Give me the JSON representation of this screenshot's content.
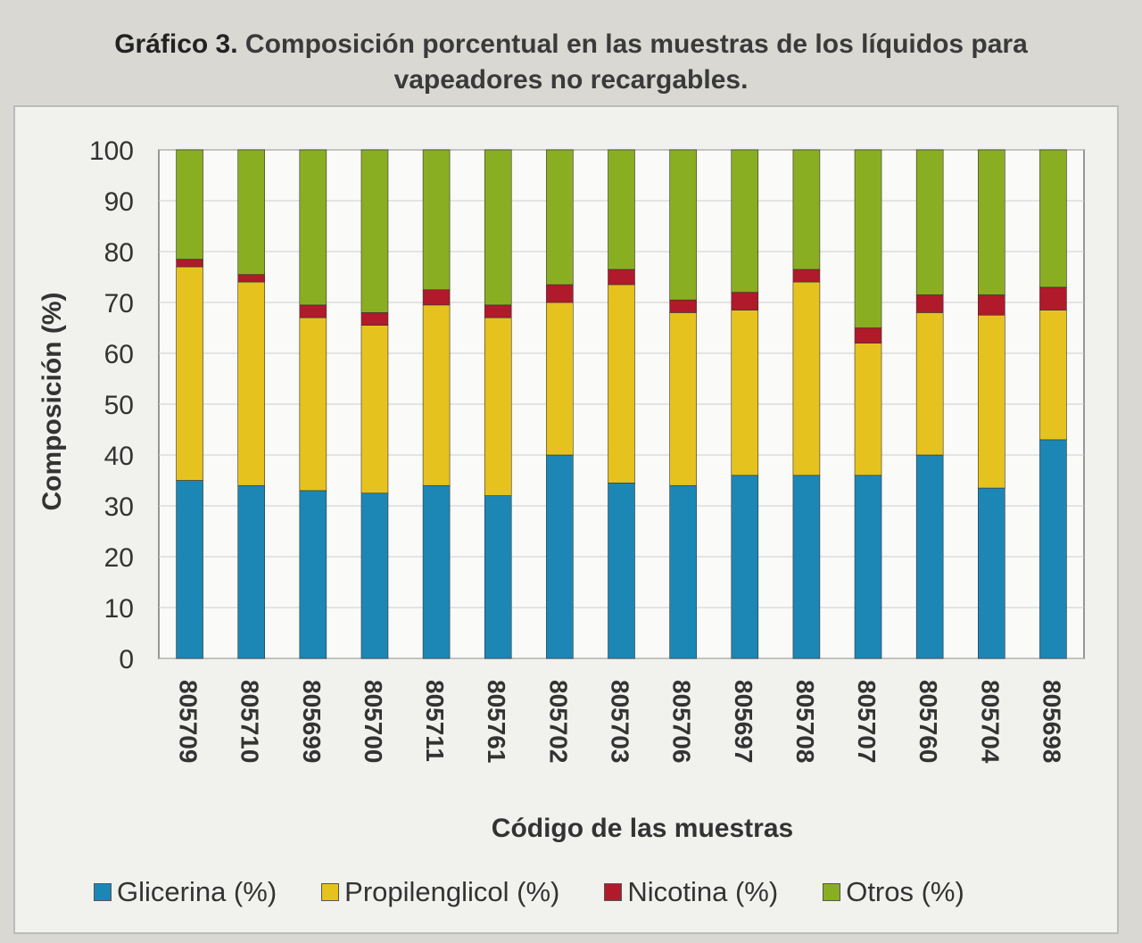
{
  "title": "Gráfico 3. Composición porcentual en las muestras de los líquidos para vapeadores no recargables.",
  "title_prefix": "Gráfico 3.",
  "title_rest": " Composición porcentual en las muestras de los líquidos para vapeadores no recargables.",
  "chart_data": {
    "type": "bar",
    "stacked": true,
    "title": "Gráfico 3. Composición porcentual en las muestras de los líquidos para vapeadores no recargables.",
    "xlabel": "Código de las muestras",
    "ylabel": "Composición (%)",
    "ylim": [
      0,
      100
    ],
    "yticks": [
      0,
      10,
      20,
      30,
      40,
      50,
      60,
      70,
      80,
      90,
      100
    ],
    "grid": true,
    "legend": "bottom",
    "categories": [
      "805709",
      "805710",
      "805699",
      "805700",
      "805711",
      "805761",
      "805702",
      "805703",
      "805706",
      "805697",
      "805708",
      "805707",
      "805760",
      "805704",
      "805698"
    ],
    "series": [
      {
        "name": "Glicerina (%)",
        "color": "#1c87b5",
        "values": [
          35,
          34,
          33,
          32.5,
          34,
          32,
          40,
          34.5,
          34,
          36,
          36,
          36,
          40,
          33.5,
          43
        ]
      },
      {
        "name": "Propilenglicol (%)",
        "color": "#e6c21e",
        "values": [
          42,
          40,
          34,
          33,
          35.5,
          35,
          30,
          39,
          34,
          32.5,
          38,
          26,
          28,
          34,
          25.5
        ]
      },
      {
        "name": "Nicotina (%)",
        "color": "#b01a2a",
        "values": [
          1.5,
          1.5,
          2.5,
          2.5,
          3,
          2.5,
          3.5,
          3,
          2.5,
          3.5,
          2.5,
          3,
          3.5,
          4,
          4.5
        ]
      },
      {
        "name": "Otros (%)",
        "color": "#8aae22",
        "values": [
          21.5,
          24.5,
          30.5,
          32,
          27.5,
          30.5,
          26.5,
          23.5,
          29.5,
          28,
          23.5,
          35,
          28.5,
          28.5,
          27
        ]
      }
    ]
  }
}
